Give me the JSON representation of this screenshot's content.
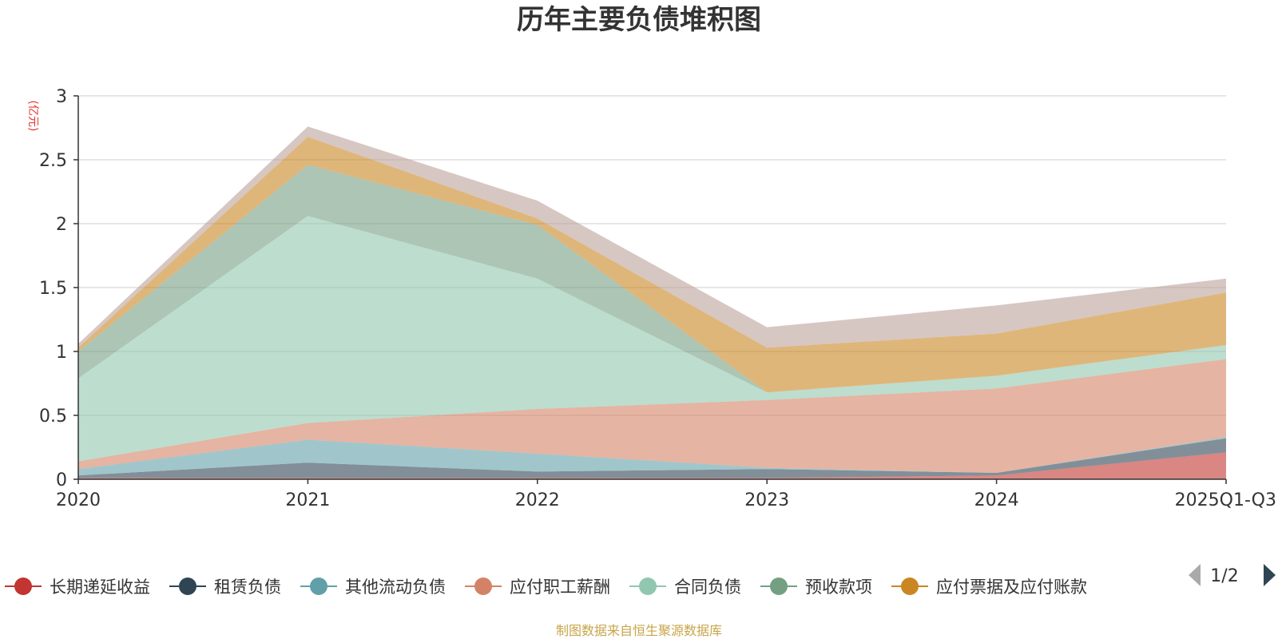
{
  "chart_data": {
    "type": "area",
    "stacked": true,
    "title": "历年主要负债堆积图",
    "unit_label": "(亿元)",
    "source_note": "制图数据来自恒生聚源数据库",
    "categories": [
      "2020",
      "2021",
      "2022",
      "2023",
      "2024",
      "2025Q1-Q3"
    ],
    "y_ticks": [
      "0",
      "0.5",
      "1",
      "1.5",
      "2",
      "2.5",
      "3"
    ],
    "ylim": [
      0,
      3
    ],
    "grid": true,
    "legend_position": "bottom",
    "legend_page": "1/2",
    "series": [
      {
        "name": "长期递延收益",
        "color": "#c23531",
        "values": [
          0.01,
          0.01,
          0.01,
          0.01,
          0.03,
          0.21
        ]
      },
      {
        "name": "租赁负债",
        "color": "#2f4554",
        "values": [
          0.02,
          0.12,
          0.05,
          0.07,
          0.02,
          0.11
        ]
      },
      {
        "name": "其他流动负债",
        "color": "#61a0a8",
        "values": [
          0.05,
          0.18,
          0.14,
          0.01,
          0.0,
          0.01
        ]
      },
      {
        "name": "应付职工薪酬",
        "color": "#d48265",
        "values": [
          0.06,
          0.13,
          0.35,
          0.53,
          0.66,
          0.61
        ]
      },
      {
        "name": "合同负债",
        "color": "#91c7ae",
        "values": [
          0.65,
          1.62,
          1.02,
          0.06,
          0.1,
          0.11
        ]
      },
      {
        "name": "预收款项",
        "color": "#749f83",
        "values": [
          0.21,
          0.4,
          0.42,
          0.0,
          0.0,
          0.0
        ]
      },
      {
        "name": "应付票据及应付账款",
        "color": "#ca8622",
        "values": [
          0.03,
          0.22,
          0.05,
          0.35,
          0.33,
          0.41
        ]
      },
      {
        "name": "",
        "color": "#bda29a",
        "values": [
          0.03,
          0.08,
          0.14,
          0.16,
          0.22,
          0.11
        ]
      }
    ],
    "colors": {
      "unit": "#e53935",
      "source": "#c8a54a",
      "pager_inactive": "#aaaaaa",
      "pager_active": "#2f4554",
      "axis": "#333333",
      "grid": "#cccccc"
    }
  }
}
